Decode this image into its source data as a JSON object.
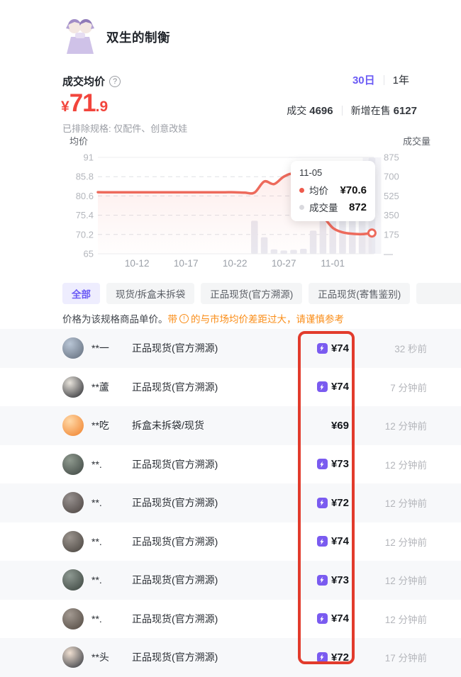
{
  "header": {
    "title": "双生的制衡"
  },
  "price_section": {
    "label": "成交均价",
    "help_glyph": "?",
    "range_tabs": [
      {
        "label": "30日",
        "active": true
      },
      {
        "label": "1年",
        "active": false
      }
    ],
    "currency": "¥",
    "price_int": "71",
    "price_dec": ".9",
    "deal_label": "成交",
    "deal_count": "4696",
    "listing_label": "新增在售",
    "listing_count": "6127",
    "excluded_note": "已排除规格: 仅配件、创意改娃"
  },
  "chart_data": {
    "type": "line+bar",
    "left_axis_label": "均价",
    "right_axis_label": "成交量",
    "left_ticks": [
      "91",
      "85.8",
      "80.6",
      "75.4",
      "70.2",
      "65"
    ],
    "right_ticks": [
      "875",
      "700",
      "525",
      "350",
      "175",
      "—"
    ],
    "x_tick_labels": [
      "10-12",
      "10-17",
      "10-22",
      "10-27",
      "11-01"
    ],
    "price_ylim": [
      65,
      91
    ],
    "volume_ylim": [
      0,
      875
    ],
    "x": [
      "10-08",
      "10-09",
      "10-10",
      "10-11",
      "10-12",
      "10-13",
      "10-14",
      "10-15",
      "10-16",
      "10-17",
      "10-18",
      "10-19",
      "10-20",
      "10-21",
      "10-22",
      "10-23",
      "10-24",
      "10-25",
      "10-26",
      "10-27",
      "10-28",
      "10-29",
      "10-30",
      "10-31",
      "11-01",
      "11-02",
      "11-03",
      "11-04",
      "11-05"
    ],
    "series": [
      {
        "name": "均价",
        "type": "line",
        "color": "#ed6a5c",
        "values": [
          81.6,
          81.6,
          81.6,
          81.6,
          81.6,
          81.6,
          81.6,
          81.6,
          81.6,
          81.6,
          81.6,
          81.6,
          81.6,
          81.6,
          81.6,
          81.5,
          81.5,
          84.5,
          83.8,
          85.8,
          86.5,
          84.0,
          79.0,
          75.2,
          72.0,
          70.8,
          70.4,
          70.3,
          70.6
        ]
      },
      {
        "name": "成交量",
        "type": "bar",
        "color": "#e9e9f0",
        "values": [
          0,
          0,
          0,
          0,
          0,
          0,
          0,
          0,
          0,
          0,
          0,
          0,
          0,
          0,
          0,
          0,
          300,
          150,
          40,
          30,
          35,
          45,
          210,
          330,
          330,
          335,
          330,
          340,
          872
        ]
      }
    ],
    "hover": {
      "date_label": "11-05",
      "price_label": "均价",
      "price_value": "¥70.6",
      "volume_label": "成交量",
      "volume_value": "872"
    },
    "grid": true,
    "legend_position": "tooltip"
  },
  "filter_tabs": [
    {
      "label": "全部",
      "active": true
    },
    {
      "label": "现货/拆盒未拆袋",
      "active": false
    },
    {
      "label": "正品现货(官方溯源)",
      "active": false
    },
    {
      "label": "正品现货(寄售鉴别)",
      "active": false
    },
    {
      "label": "",
      "active": false
    }
  ],
  "notice": {
    "prefix": "价格为该规格商品单价。",
    "warn_before": "带",
    "warn_icon_glyph": "!",
    "warn_after": "的与市场均价差距过大，请谨慎参考"
  },
  "listings": [
    {
      "name": "**一",
      "type": "正品现货(官方溯源)",
      "lightning": true,
      "price": "¥74",
      "time": "32 秒前",
      "avatar": [
        "#b9c6d6",
        "#5f6a79"
      ]
    },
    {
      "name": "**蘆",
      "type": "正品现货(官方溯源)",
      "lightning": true,
      "price": "¥74",
      "time": "7 分钟前",
      "avatar": [
        "#e8e4dc",
        "#23242a"
      ]
    },
    {
      "name": "**吃",
      "type": "拆盒未拆袋/现货",
      "lightning": false,
      "price": "¥69",
      "time": "12 分钟前",
      "avatar": [
        "#ffd9a8",
        "#f07f28"
      ]
    },
    {
      "name": "**.",
      "type": "正品现货(官方溯源)",
      "lightning": true,
      "price": "¥73",
      "time": "12 分钟前",
      "avatar": [
        "#8f9a8f",
        "#3c4440"
      ]
    },
    {
      "name": "**.",
      "type": "正品现货(官方溯源)",
      "lightning": true,
      "price": "¥72",
      "time": "12 分钟前",
      "avatar": [
        "#97918f",
        "#4a423f"
      ]
    },
    {
      "name": "**.",
      "type": "正品现货(官方溯源)",
      "lightning": true,
      "price": "¥74",
      "time": "12 分钟前",
      "avatar": [
        "#9b948e",
        "#46413c"
      ]
    },
    {
      "name": "**.",
      "type": "正品现货(官方溯源)",
      "lightning": true,
      "price": "¥73",
      "time": "12 分钟前",
      "avatar": [
        "#8e9992",
        "#39423c"
      ]
    },
    {
      "name": "**.",
      "type": "正品现货(官方溯源)",
      "lightning": true,
      "price": "¥74",
      "time": "12 分钟前",
      "avatar": [
        "#a39a92",
        "#4f463e"
      ]
    },
    {
      "name": "**头",
      "type": "正品现货(官方溯源)",
      "lightning": true,
      "price": "¥72",
      "time": "17 分钟前",
      "avatar": [
        "#f0e0d2",
        "#2b3038"
      ]
    }
  ],
  "annotation": {
    "color": "#e23b2c"
  }
}
